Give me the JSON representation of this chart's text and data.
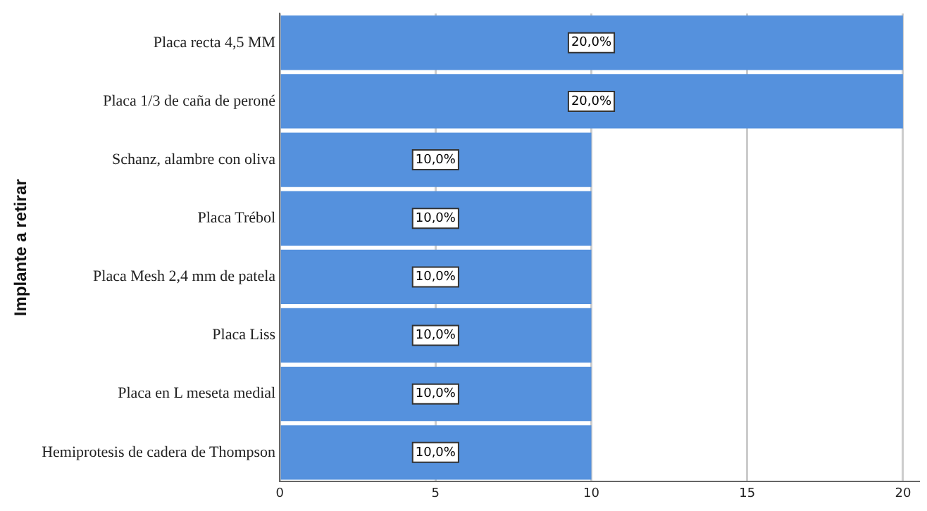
{
  "chart_data": {
    "type": "bar",
    "orientation": "horizontal",
    "ylabel": "Implante a retirar",
    "categories": [
      "Placa recta 4,5 MM",
      "Placa 1/3 de caña de peroné",
      "Schanz, alambre con oliva",
      "Placa Trébol",
      "Placa Mesh 2,4 mm de patela",
      "Placa Liss",
      "Placa en L meseta medial",
      "Hemiprotesis de cadera de Thompson"
    ],
    "values": [
      20,
      20,
      10,
      10,
      10,
      10,
      10,
      10
    ],
    "value_labels": [
      "20,0%",
      "20,0%",
      "10,0%",
      "10,0%",
      "10,0%",
      "10,0%",
      "10,0%",
      "10,0%"
    ],
    "color": "#5591dd",
    "xlim": [
      0,
      20.5
    ],
    "xticks": [
      0,
      5,
      10,
      15,
      20
    ],
    "grid": "x",
    "legend": false
  }
}
